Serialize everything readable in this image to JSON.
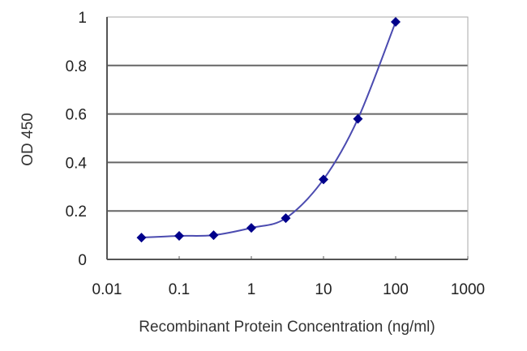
{
  "chart_data": {
    "type": "line",
    "title": "",
    "xlabel": "Recombinant Protein Concentration (ng/ml)",
    "ylabel": "OD 450",
    "xscale": "log",
    "xlim": [
      0.01,
      1000
    ],
    "ylim": [
      0,
      1
    ],
    "x_ticks": [
      "0.01",
      "0.1",
      "1",
      "10",
      "100",
      "1000"
    ],
    "y_ticks": [
      "0",
      "0.2",
      "0.4",
      "0.6",
      "0.8",
      "1"
    ],
    "grid": {
      "horizontal": true,
      "vertical": false
    },
    "legend": null,
    "series": [
      {
        "name": "OD 450",
        "color": "#00008b",
        "line_color": "#4b4bb0",
        "marker": "diamond",
        "x": [
          0.03,
          0.1,
          0.3,
          1,
          3,
          10,
          30,
          100
        ],
        "values": [
          0.09,
          0.097,
          0.1,
          0.13,
          0.17,
          0.33,
          0.58,
          0.98
        ]
      }
    ]
  }
}
